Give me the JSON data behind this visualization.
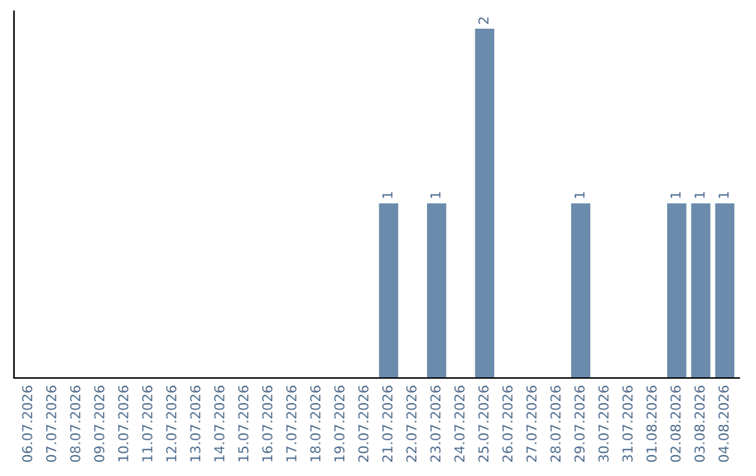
{
  "chart_data": {
    "type": "bar",
    "categories": [
      "06.07.2026",
      "07.07.2026",
      "08.07.2026",
      "09.07.2026",
      "10.07.2026",
      "11.07.2026",
      "12.07.2026",
      "13.07.2026",
      "14.07.2026",
      "15.07.2026",
      "16.07.2026",
      "17.07.2026",
      "18.07.2026",
      "19.07.2026",
      "20.07.2026",
      "21.07.2026",
      "22.07.2026",
      "23.07.2026",
      "24.07.2026",
      "25.07.2026",
      "26.07.2026",
      "27.07.2026",
      "28.07.2026",
      "29.07.2026",
      "30.07.2026",
      "31.07.2026",
      "01.08.2026",
      "02.08.2026",
      "03.08.2026",
      "04.08.2026"
    ],
    "values": [
      null,
      null,
      null,
      null,
      null,
      null,
      null,
      null,
      null,
      null,
      null,
      null,
      null,
      null,
      null,
      1,
      null,
      1,
      null,
      2,
      null,
      null,
      null,
      1,
      null,
      null,
      null,
      1,
      1,
      1
    ],
    "value_labels": [
      null,
      null,
      null,
      null,
      null,
      null,
      null,
      null,
      null,
      null,
      null,
      null,
      null,
      null,
      null,
      "1",
      null,
      "1",
      null,
      "2",
      null,
      null,
      null,
      "1",
      null,
      null,
      null,
      "1",
      "1",
      "1"
    ],
    "color": "#6a8bab",
    "tick_labels": "x",
    "grid": false,
    "legend": false
  }
}
